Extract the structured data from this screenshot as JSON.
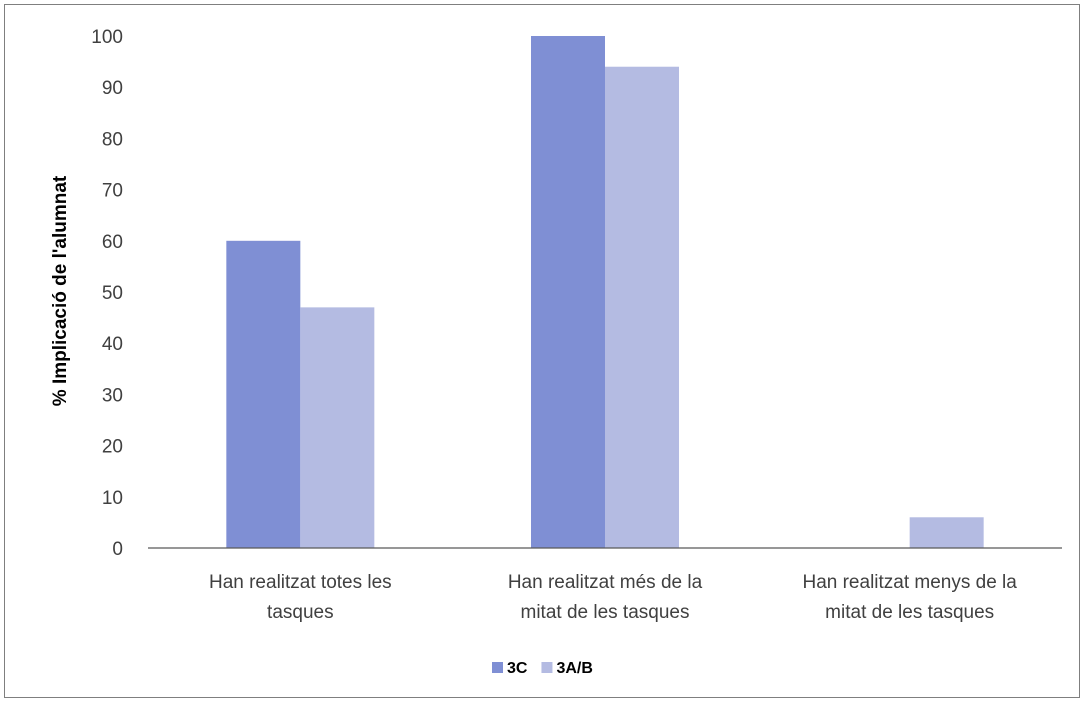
{
  "chart_data": {
    "type": "bar",
    "title": "",
    "xlabel": "",
    "ylabel": "% Implicació de l'alumnat",
    "ylim": [
      0,
      100
    ],
    "yticks": [
      0,
      10,
      20,
      30,
      40,
      50,
      60,
      70,
      80,
      90,
      100
    ],
    "grid": false,
    "legend_position": "bottom",
    "categories": [
      [
        "Han realitzat totes les",
        "tasques"
      ],
      [
        "Han realitzat més de la",
        "mitat de les tasques"
      ],
      [
        "Han realitzat menys de la",
        "mitat de les tasques"
      ]
    ],
    "series": [
      {
        "name": "3C",
        "color": "#7f8fd4",
        "values": [
          60,
          100,
          0
        ]
      },
      {
        "name": "3A/B",
        "color": "#b4bbe2",
        "values": [
          47,
          94,
          6
        ]
      }
    ]
  }
}
